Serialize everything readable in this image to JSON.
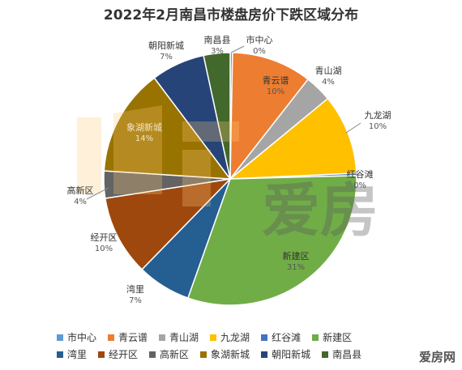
{
  "chart_data": {
    "type": "pie",
    "title": "2022年2月南昌市楼盘房价下跌区域分布",
    "slices": [
      {
        "name": "市中心",
        "label": "0%",
        "value": 0.3,
        "color": "#5b9bd5"
      },
      {
        "name": "青云谱",
        "label": "10%",
        "value": 10.3,
        "color": "#ed7d31"
      },
      {
        "name": "青山湖",
        "label": "4%",
        "value": 3.5,
        "color": "#a5a5a5"
      },
      {
        "name": "九龙湖",
        "label": "10%",
        "value": 10.3,
        "color": "#ffc000"
      },
      {
        "name": "红谷滩",
        "label": "0%",
        "value": 0.3,
        "color": "#4472c4"
      },
      {
        "name": "新建区",
        "label": "31%",
        "value": 31.0,
        "color": "#70ad47"
      },
      {
        "name": "湾里",
        "label": "7%",
        "value": 6.9,
        "color": "#255e91"
      },
      {
        "name": "经开区",
        "label": "10%",
        "value": 10.3,
        "color": "#9e480e"
      },
      {
        "name": "高新区",
        "label": "4%",
        "value": 3.5,
        "color": "#636363"
      },
      {
        "name": "象湖新城",
        "label": "14%",
        "value": 13.8,
        "color": "#997300"
      },
      {
        "name": "朝阳新城",
        "label": "7%",
        "value": 6.9,
        "color": "#264478"
      },
      {
        "name": "南昌县",
        "label": "3%",
        "value": 3.4,
        "color": "#43682b"
      }
    ]
  },
  "watermark": "爱房网"
}
